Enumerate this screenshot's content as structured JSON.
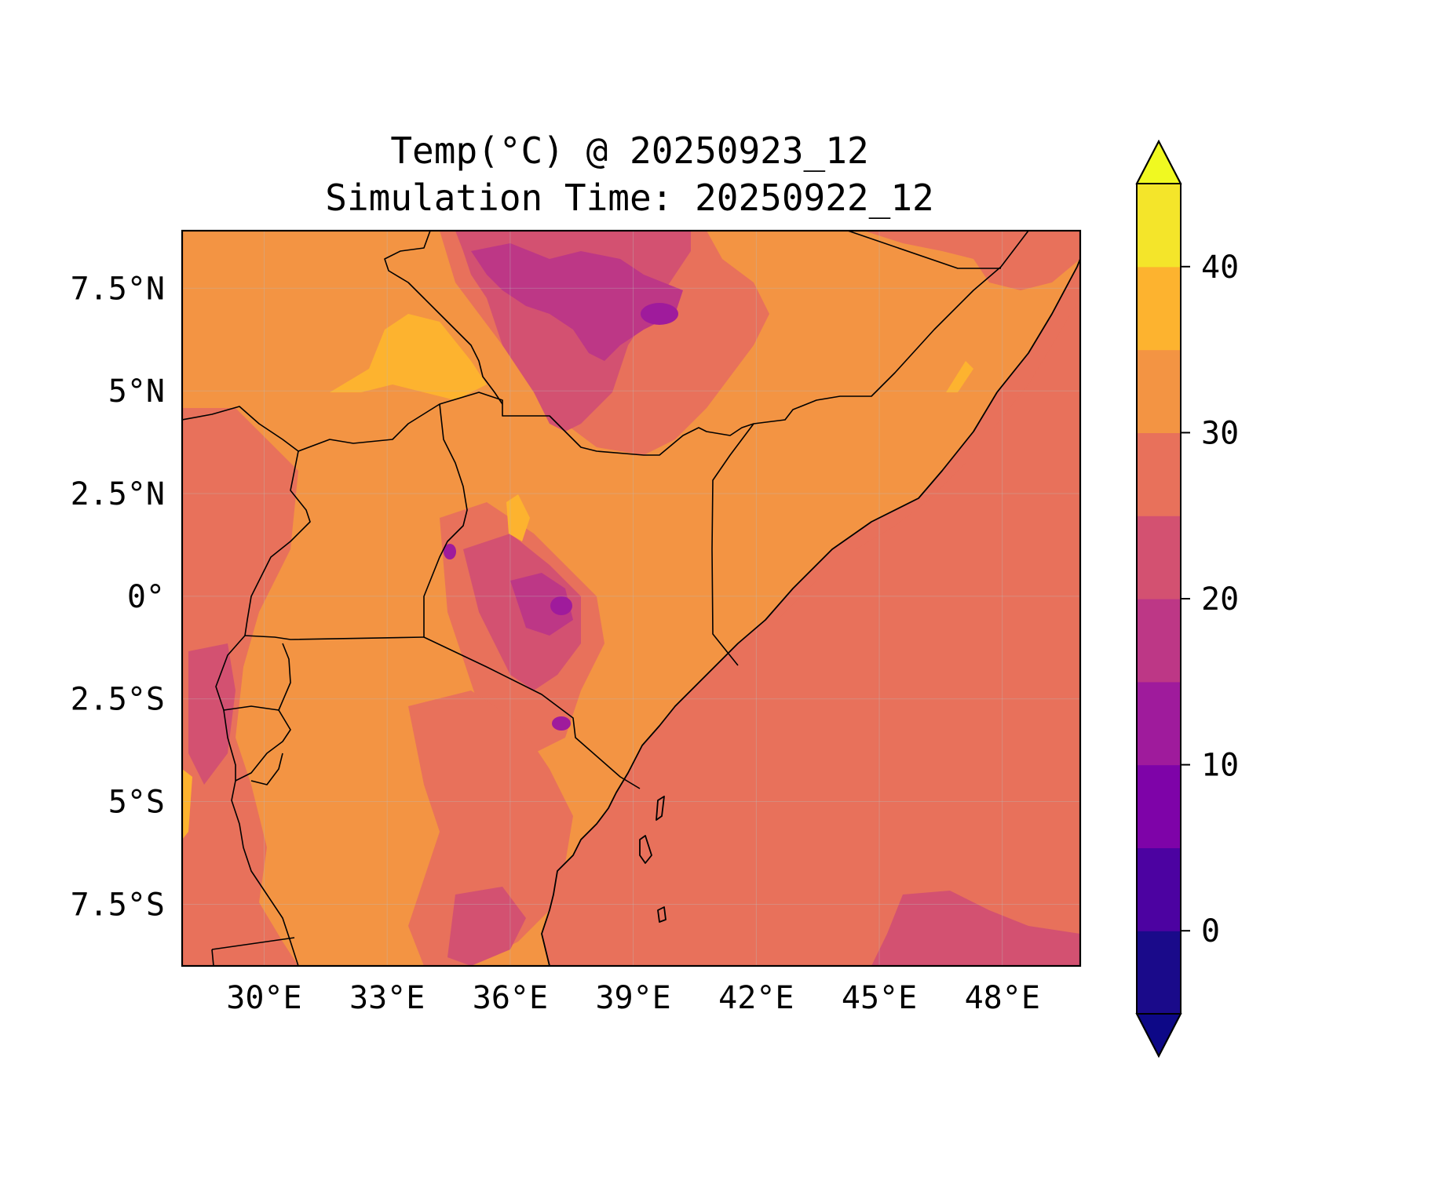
{
  "title": {
    "line1": "Temp(°C) @ 20250923_12",
    "line2": "Simulation Time: 20250922_12"
  },
  "map": {
    "lon_range": [
      28.0,
      49.9
    ],
    "lat_range": [
      -9.0,
      8.9
    ],
    "x_ticks": [
      {
        "value": 30,
        "label": "30°E"
      },
      {
        "value": 33,
        "label": "33°E"
      },
      {
        "value": 36,
        "label": "36°E"
      },
      {
        "value": 39,
        "label": "39°E"
      },
      {
        "value": 42,
        "label": "42°E"
      },
      {
        "value": 45,
        "label": "45°E"
      },
      {
        "value": 48,
        "label": "48°E"
      }
    ],
    "y_ticks": [
      {
        "value": 7.5,
        "label": "7.5°N"
      },
      {
        "value": 5,
        "label": "5°N"
      },
      {
        "value": 2.5,
        "label": "2.5°N"
      },
      {
        "value": 0,
        "label": "0°"
      },
      {
        "value": -2.5,
        "label": "2.5°S"
      },
      {
        "value": -5,
        "label": "5°S"
      },
      {
        "value": -7.5,
        "label": "7.5°S"
      }
    ],
    "grid": true
  },
  "colorbar": {
    "min": -5,
    "max": 45,
    "levels": [
      -5,
      0,
      5,
      10,
      15,
      20,
      25,
      30,
      35,
      40,
      45
    ],
    "colors": [
      "#1a0a8a",
      "#4c02a1",
      "#7e03a8",
      "#9f1b9c",
      "#bd3786",
      "#d35171",
      "#e8715b",
      "#f39443",
      "#fdb32f",
      "#f4e52a"
    ],
    "under_color": "#0d0887",
    "over_color": "#f0f921",
    "ticks": [
      {
        "value": 0,
        "label": "0"
      },
      {
        "value": 10,
        "label": "10"
      },
      {
        "value": 20,
        "label": "20"
      },
      {
        "value": 30,
        "label": "30"
      },
      {
        "value": 40,
        "label": "40"
      }
    ],
    "extend": "both"
  }
}
